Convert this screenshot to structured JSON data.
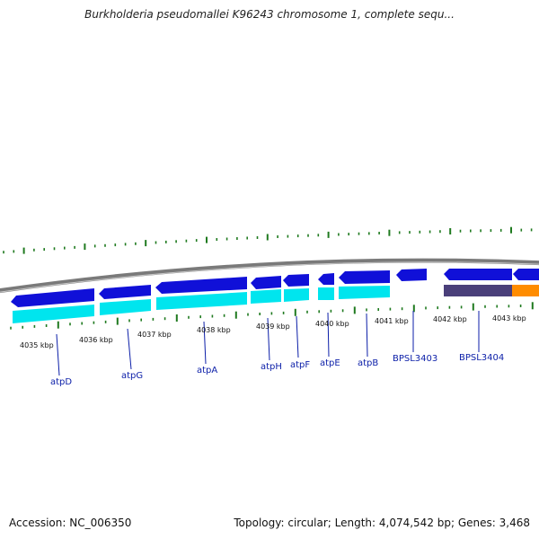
{
  "title": "Burkholderia pseudomallei K96243 chromosome 1, complete sequ...",
  "footer": {
    "accession": "Accession: NC_006350",
    "topology": "Topology: circular; Length: 4,074,542 bp; Genes: 3,468"
  },
  "scale_labels": [
    "4035 kbp",
    "4036 kbp",
    "4037 kbp",
    "4038 kbp",
    "4039 kbp",
    "4040 kbp",
    "4041 kbp",
    "4042 kbp",
    "4043 kbp"
  ],
  "genes": [
    {
      "name": "atpD"
    },
    {
      "name": "atpG"
    },
    {
      "name": "atpA"
    },
    {
      "name": "atpH"
    },
    {
      "name": "atpF"
    },
    {
      "name": "atpE"
    },
    {
      "name": "atpB"
    },
    {
      "name": "BPSL3403"
    },
    {
      "name": "BPSL3404"
    }
  ],
  "colors": {
    "cds": "#1010d8",
    "gene": "#00e5ee",
    "gene_dark": "#4a3f7a",
    "gene_orange": "#ff8c00",
    "gc_ticks": "#1f7a1f",
    "backbone": "#888888",
    "label": "#0b1ea8"
  }
}
